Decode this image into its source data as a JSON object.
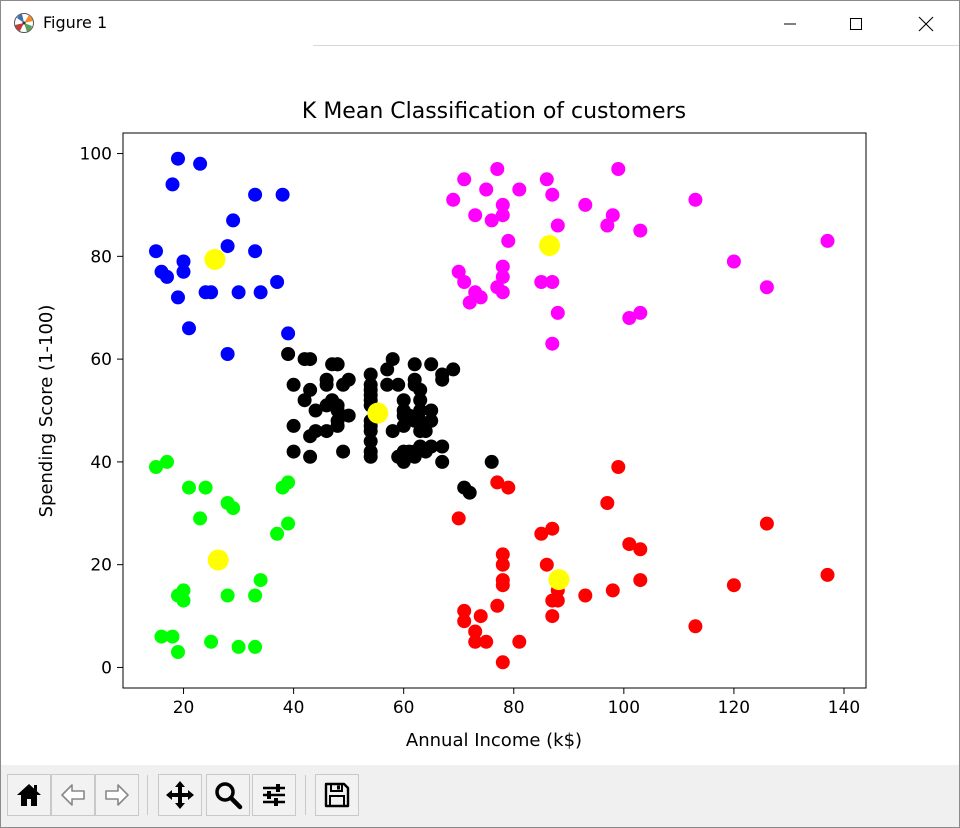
{
  "window": {
    "title": "Figure 1",
    "app_icon": "matplotlib-logo-icon",
    "controls": [
      "minimize-icon",
      "maximize-icon",
      "close-icon"
    ]
  },
  "toolbar": {
    "buttons": [
      {
        "name": "home-button",
        "icon": "home-icon"
      },
      {
        "name": "back-button",
        "icon": "arrow-left-icon"
      },
      {
        "name": "forward-button",
        "icon": "arrow-right-icon"
      },
      {
        "name": "pan-button",
        "icon": "move-icon"
      },
      {
        "name": "zoom-button",
        "icon": "magnifier-icon"
      },
      {
        "name": "configure-subplots-button",
        "icon": "sliders-icon"
      },
      {
        "name": "save-button",
        "icon": "floppy-disk-icon"
      }
    ]
  },
  "chart_data": {
    "type": "scatter",
    "title": "K Mean Classification of customers",
    "xlabel": "Annual Income (k$)",
    "ylabel": "Spending Score (1-100)",
    "xlim": [
      9,
      144
    ],
    "ylim": [
      -4,
      104
    ],
    "x_ticks": [
      20,
      40,
      60,
      80,
      100,
      120,
      140
    ],
    "y_ticks": [
      0,
      20,
      40,
      60,
      80,
      100
    ],
    "x_tick_labels": [
      "20",
      "40",
      "60",
      "80",
      "100",
      "120",
      "140"
    ],
    "y_tick_labels": [
      "0",
      "20",
      "40",
      "60",
      "80",
      "100"
    ],
    "grid": false,
    "series": [
      {
        "color": "#0000ff",
        "points": [
          [
            15,
            81
          ],
          [
            16,
            77
          ],
          [
            17,
            76
          ],
          [
            18,
            94
          ],
          [
            19,
            99
          ],
          [
            19,
            72
          ],
          [
            20,
            77
          ],
          [
            20,
            79
          ],
          [
            21,
            66
          ],
          [
            23,
            98
          ],
          [
            24,
            73
          ],
          [
            25,
            73
          ],
          [
            28,
            82
          ],
          [
            28,
            61
          ],
          [
            29,
            87
          ],
          [
            30,
            73
          ],
          [
            33,
            81
          ],
          [
            33,
            92
          ],
          [
            34,
            73
          ],
          [
            37,
            75
          ],
          [
            38,
            92
          ],
          [
            39,
            65
          ]
        ]
      },
      {
        "color": "#00ff00",
        "points": [
          [
            15,
            39
          ],
          [
            16,
            6
          ],
          [
            17,
            40
          ],
          [
            18,
            6
          ],
          [
            19,
            3
          ],
          [
            19,
            14
          ],
          [
            20,
            13
          ],
          [
            20,
            15
          ],
          [
            21,
            35
          ],
          [
            23,
            29
          ],
          [
            24,
            35
          ],
          [
            25,
            5
          ],
          [
            28,
            32
          ],
          [
            28,
            14
          ],
          [
            29,
            31
          ],
          [
            30,
            4
          ],
          [
            33,
            4
          ],
          [
            33,
            14
          ],
          [
            34,
            17
          ],
          [
            37,
            26
          ],
          [
            38,
            35
          ],
          [
            39,
            36
          ],
          [
            39,
            28
          ]
        ]
      },
      {
        "color": "#ff00ff",
        "points": [
          [
            69,
            91
          ],
          [
            70,
            77
          ],
          [
            71,
            95
          ],
          [
            71,
            75
          ],
          [
            72,
            71
          ],
          [
            73,
            88
          ],
          [
            73,
            73
          ],
          [
            74,
            72
          ],
          [
            75,
            93
          ],
          [
            76,
            87
          ],
          [
            77,
            97
          ],
          [
            77,
            74
          ],
          [
            78,
            90
          ],
          [
            78,
            88
          ],
          [
            78,
            76
          ],
          [
            78,
            78
          ],
          [
            78,
            73
          ],
          [
            79,
            83
          ],
          [
            81,
            93
          ],
          [
            85,
            75
          ],
          [
            86,
            95
          ],
          [
            87,
            63
          ],
          [
            87,
            75
          ],
          [
            87,
            92
          ],
          [
            88,
            86
          ],
          [
            88,
            69
          ],
          [
            93,
            90
          ],
          [
            97,
            86
          ],
          [
            98,
            88
          ],
          [
            99,
            97
          ],
          [
            101,
            68
          ],
          [
            103,
            85
          ],
          [
            103,
            69
          ],
          [
            113,
            91
          ],
          [
            120,
            79
          ],
          [
            126,
            74
          ],
          [
            137,
            83
          ]
        ]
      },
      {
        "color": "#ff0000",
        "points": [
          [
            70,
            29
          ],
          [
            71,
            11
          ],
          [
            71,
            9
          ],
          [
            73,
            5
          ],
          [
            73,
            7
          ],
          [
            74,
            10
          ],
          [
            75,
            5
          ],
          [
            77,
            12
          ],
          [
            77,
            36
          ],
          [
            78,
            22
          ],
          [
            78,
            20
          ],
          [
            78,
            17
          ],
          [
            78,
            16
          ],
          [
            78,
            1
          ],
          [
            79,
            35
          ],
          [
            81,
            5
          ],
          [
            85,
            26
          ],
          [
            86,
            20
          ],
          [
            87,
            27
          ],
          [
            87,
            10
          ],
          [
            87,
            13
          ],
          [
            88,
            15
          ],
          [
            88,
            13
          ],
          [
            93,
            14
          ],
          [
            97,
            32
          ],
          [
            98,
            15
          ],
          [
            99,
            39
          ],
          [
            101,
            24
          ],
          [
            103,
            17
          ],
          [
            103,
            23
          ],
          [
            113,
            8
          ],
          [
            120,
            16
          ],
          [
            126,
            28
          ],
          [
            137,
            18
          ]
        ]
      },
      {
        "color": "#000000",
        "points": [
          [
            39,
            61
          ],
          [
            40,
            55
          ],
          [
            40,
            47
          ],
          [
            40,
            42
          ],
          [
            42,
            52
          ],
          [
            42,
            60
          ],
          [
            43,
            54
          ],
          [
            43,
            60
          ],
          [
            43,
            45
          ],
          [
            43,
            41
          ],
          [
            44,
            50
          ],
          [
            44,
            46
          ],
          [
            46,
            51
          ],
          [
            46,
            46
          ],
          [
            46,
            56
          ],
          [
            46,
            55
          ],
          [
            47,
            52
          ],
          [
            47,
            59
          ],
          [
            48,
            51
          ],
          [
            48,
            59
          ],
          [
            48,
            50
          ],
          [
            48,
            48
          ],
          [
            48,
            59
          ],
          [
            48,
            47
          ],
          [
            49,
            55
          ],
          [
            49,
            42
          ],
          [
            50,
            49
          ],
          [
            50,
            56
          ],
          [
            54,
            47
          ],
          [
            54,
            54
          ],
          [
            54,
            53
          ],
          [
            54,
            48
          ],
          [
            54,
            52
          ],
          [
            54,
            42
          ],
          [
            54,
            51
          ],
          [
            54,
            55
          ],
          [
            54,
            41
          ],
          [
            54,
            44
          ],
          [
            54,
            57
          ],
          [
            54,
            46
          ],
          [
            57,
            58
          ],
          [
            57,
            55
          ],
          [
            58,
            60
          ],
          [
            58,
            46
          ],
          [
            59,
            55
          ],
          [
            59,
            41
          ],
          [
            60,
            49
          ],
          [
            60,
            40
          ],
          [
            60,
            42
          ],
          [
            60,
            52
          ],
          [
            60,
            47
          ],
          [
            60,
            50
          ],
          [
            61,
            42
          ],
          [
            61,
            49
          ],
          [
            62,
            41
          ],
          [
            62,
            48
          ],
          [
            62,
            59
          ],
          [
            62,
            55
          ],
          [
            62,
            56
          ],
          [
            62,
            42
          ],
          [
            63,
            50
          ],
          [
            63,
            46
          ],
          [
            63,
            43
          ],
          [
            63,
            48
          ],
          [
            63,
            52
          ],
          [
            63,
            54
          ],
          [
            64,
            42
          ],
          [
            64,
            46
          ],
          [
            65,
            48
          ],
          [
            65,
            50
          ],
          [
            65,
            43
          ],
          [
            65,
            59
          ],
          [
            67,
            43
          ],
          [
            67,
            57
          ],
          [
            67,
            56
          ],
          [
            67,
            40
          ],
          [
            69,
            58
          ],
          [
            71,
            35
          ],
          [
            72,
            34
          ],
          [
            76,
            40
          ]
        ]
      },
      {
        "color": "#ffff00",
        "points": [
          [
            25.7,
            79.4
          ],
          [
            26.3,
            20.9
          ],
          [
            55.3,
            49.5
          ],
          [
            86.5,
            82.1
          ],
          [
            88.2,
            17.1
          ]
        ]
      }
    ]
  }
}
